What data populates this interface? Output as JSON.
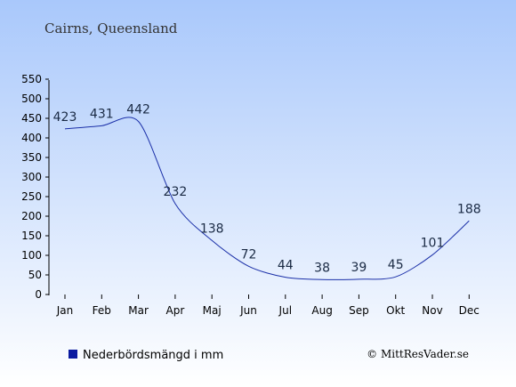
{
  "chart_data": {
    "type": "line",
    "title": "Cairns, Queensland",
    "categories": [
      "Jan",
      "Feb",
      "Mar",
      "Apr",
      "Maj",
      "Jun",
      "Jul",
      "Aug",
      "Sep",
      "Okt",
      "Nov",
      "Dec"
    ],
    "series": [
      {
        "name": "Nederbördsmängd i mm",
        "values": [
          423,
          431,
          442,
          232,
          138,
          72,
          44,
          38,
          39,
          45,
          101,
          188
        ]
      }
    ],
    "data_labels": [
      "423",
      "431",
      "442",
      "232",
      "138",
      "72",
      "44",
      "38",
      "39",
      "45",
      "101",
      "188"
    ],
    "y_ticks": [
      "0",
      "50",
      "100",
      "150",
      "200",
      "250",
      "300",
      "350",
      "400",
      "450",
      "500",
      "550"
    ],
    "ylim": [
      0,
      550
    ],
    "grid": false,
    "legend_position": "bottom-left",
    "colors": {
      "line": "#1a2fa8",
      "legend_marker": "#0a1aa0",
      "background_top": "#a9c8fb",
      "background_bottom": "#ffffff"
    }
  },
  "credit": "© MittResVader.se"
}
